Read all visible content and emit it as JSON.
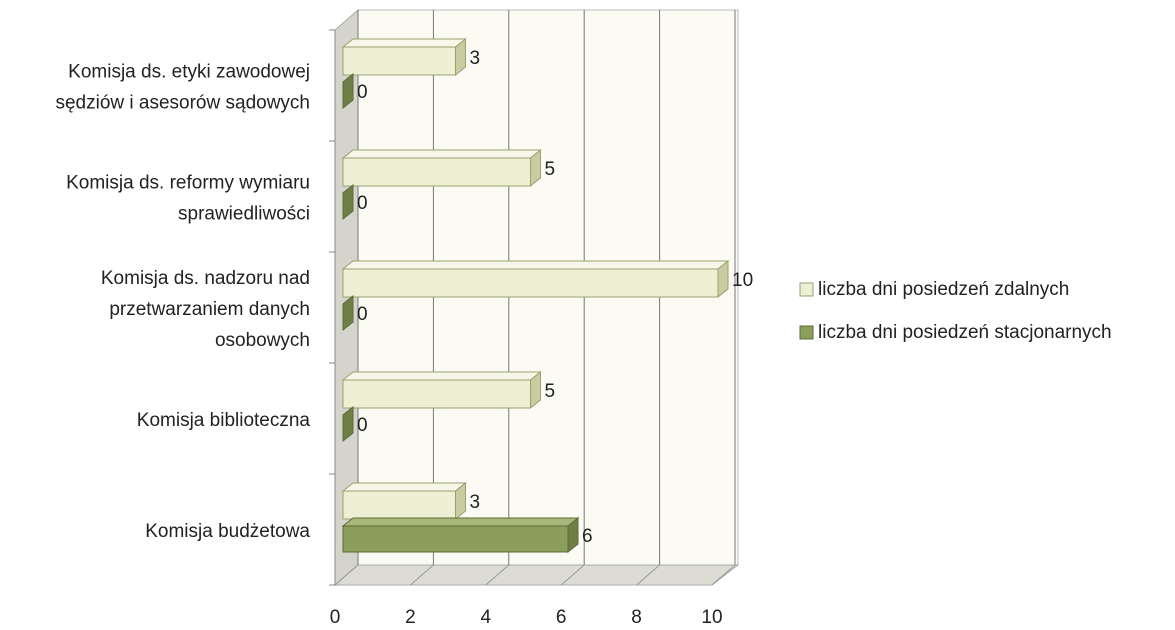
{
  "chart_data": {
    "type": "bar3d_horizontal",
    "categories": [
      "Komisja ds. etyki zawodowej\nsędziów i asesorów sądowych",
      "Komisja ds. reformy wymiaru\nsprawiedliwości",
      "Komisja ds. nadzoru nad\nprzetwarzaniem danych\nosobowych",
      "Komisja biblioteczna",
      "Komisja budżetowa"
    ],
    "series": [
      {
        "name": "liczba dni posiedzeń zdalnych",
        "color": "#eef0d3",
        "values": [
          3,
          5,
          10,
          5,
          3
        ]
      },
      {
        "name": "liczba dni posiedzeń stacjonarnych",
        "color": "#8c9e5c",
        "values": [
          0,
          0,
          0,
          0,
          6
        ]
      }
    ],
    "xlim": [
      0,
      10
    ],
    "xticks": [
      0,
      2,
      4,
      6,
      8,
      10
    ],
    "grid": true,
    "legend": "right"
  }
}
